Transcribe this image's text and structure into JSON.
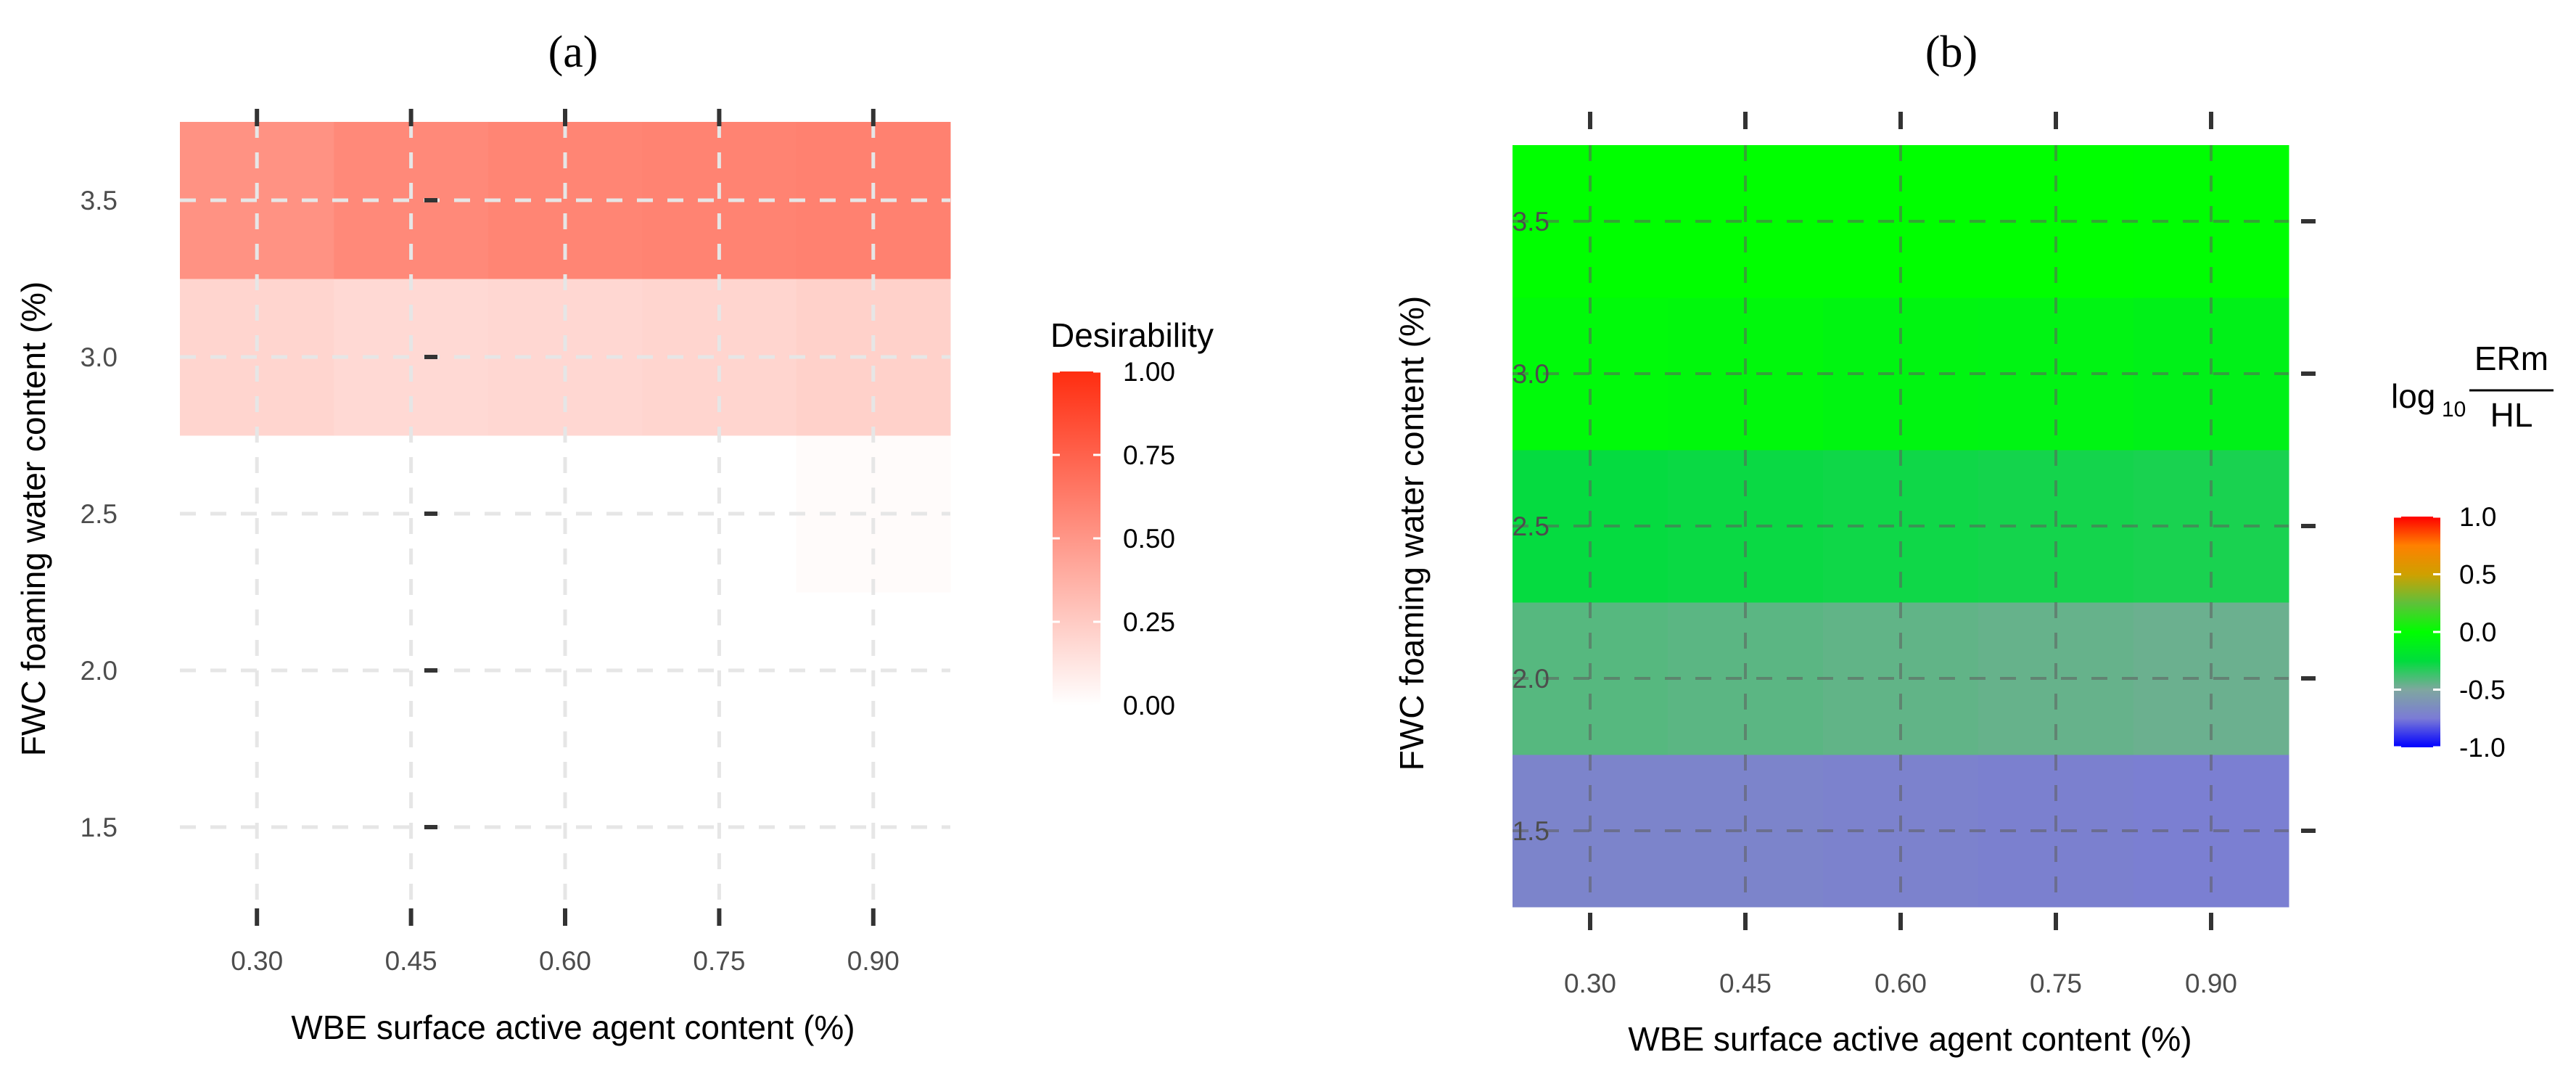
{
  "chart_data": [
    {
      "type": "heatmap",
      "panel_label": "(a)",
      "xlabel": "WBE surface active agent content (%)",
      "ylabel": "FWC foaming water content (%)",
      "x_values": [
        0.3,
        0.45,
        0.6,
        0.75,
        0.9
      ],
      "x_tick_labels": [
        "0.30",
        "0.45",
        "0.60",
        "0.75",
        "0.90"
      ],
      "y_values": [
        1.5,
        2.0,
        2.5,
        3.0,
        3.5
      ],
      "y_tick_labels": [
        "1.5",
        "2.0",
        "2.5",
        "3.0",
        "3.5"
      ],
      "xlim": [
        0.225,
        0.975
      ],
      "ylim": [
        1.25,
        3.75
      ],
      "grid": true,
      "z_matrix": [
        [
          0.0,
          0.0,
          0.0,
          0.0,
          0.0
        ],
        [
          0.0,
          0.0,
          0.0,
          0.0,
          0.0
        ],
        [
          0.0,
          0.0,
          0.0,
          0.0,
          0.02
        ],
        [
          0.2,
          0.18,
          0.19,
          0.2,
          0.22
        ],
        [
          0.52,
          0.56,
          0.58,
          0.59,
          0.6
        ]
      ],
      "legend": {
        "title": "Desirability",
        "min": 0.0,
        "max": 1.0,
        "ticks": [
          0.0,
          0.25,
          0.5,
          0.75,
          1.0
        ],
        "tick_labels": [
          "0.00",
          "0.25",
          "0.50",
          "0.75",
          "1.00"
        ],
        "colors": [
          "#ffffff",
          "#ff2d10"
        ]
      }
    },
    {
      "type": "heatmap",
      "panel_label": "(b)",
      "xlabel": "WBE surface active agent content (%)",
      "ylabel": "FWC foaming water content (%)",
      "x_values": [
        0.3,
        0.45,
        0.6,
        0.75,
        0.9
      ],
      "x_tick_labels": [
        "0.30",
        "0.45",
        "0.60",
        "0.75",
        "0.90"
      ],
      "y_values": [
        1.5,
        2.0,
        2.5,
        3.0,
        3.5
      ],
      "y_tick_labels": [
        "1.5",
        "2.0",
        "2.5",
        "3.0",
        "3.5"
      ],
      "xlim": [
        0.225,
        0.975
      ],
      "ylim": [
        1.25,
        3.75
      ],
      "grid": true,
      "z_matrix": [
        [
          -0.7,
          -0.7,
          -0.71,
          -0.72,
          -0.73
        ],
        [
          -0.42,
          -0.43,
          -0.44,
          -0.45,
          -0.46
        ],
        [
          -0.26,
          -0.27,
          -0.28,
          -0.29,
          -0.3
        ],
        [
          -0.04,
          -0.05,
          -0.07,
          -0.08,
          -0.1
        ],
        [
          0.0,
          0.0,
          0.0,
          0.0,
          -0.01
        ]
      ],
      "legend": {
        "title_prefix": "log",
        "title_subscript": "10",
        "title_numerator": "ERm",
        "title_denominator": "HL",
        "min": -1.0,
        "max": 1.0,
        "ticks": [
          -1.0,
          -0.5,
          0.0,
          0.5,
          1.0
        ],
        "tick_labels": [
          "-1.0",
          "-0.5",
          "0.0",
          "0.5",
          "1.0"
        ],
        "colors": [
          "#0000ff",
          "#7b7bd6",
          "#7fa79f",
          "#00dd3c",
          "#00ff00",
          "#5fc03a",
          "#cfa000",
          "#ff8000",
          "#ff0000"
        ]
      }
    }
  ]
}
